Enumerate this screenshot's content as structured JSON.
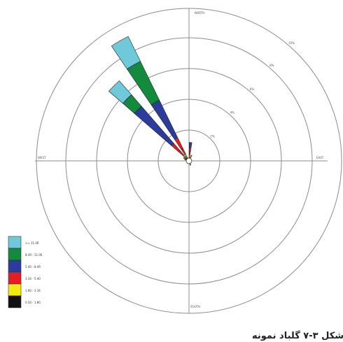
{
  "chart_data": {
    "type": "polar-bar",
    "title": "",
    "rings": [
      "2%",
      "4%",
      "6%",
      "8%",
      "10%"
    ],
    "directions": {
      "north": "NORTH",
      "south": "SOUTH",
      "east": "EAST",
      "west": "WEST"
    },
    "legend": [
      {
        "label": ">= 11.06",
        "color": "#6ec9d8"
      },
      {
        "label": "8.49 - 11.06",
        "color": "#138a3c"
      },
      {
        "label": "5.40 - 8.49",
        "color": "#2b3c9c"
      },
      {
        "label": "3.34 - 5.40",
        "color": "#e51e25"
      },
      {
        "label": "1.80 - 3.34",
        "color": "#f4ea12"
      },
      {
        "label": "0.50 - 1.80",
        "color": "#111111"
      }
    ],
    "series": [
      {
        "direction_deg": 330,
        "segments": [
          0.2,
          0.3,
          0.4,
          0.8,
          2.7,
          2.8,
          1.8
        ]
      },
      {
        "direction_deg": 315,
        "segments": [
          0.2,
          0.3,
          0.4,
          0.6,
          3.2,
          1.0,
          1.2
        ]
      },
      {
        "direction_deg": 5,
        "segments": [
          0.2,
          0.2,
          0.2,
          0.3,
          0.3,
          0,
          0
        ]
      },
      {
        "direction_deg": 25,
        "segments": [
          0.2,
          0.2,
          0,
          0,
          0,
          0,
          0
        ]
      },
      {
        "direction_deg": 300,
        "segments": [
          0.2,
          0.2,
          0,
          0,
          0,
          0,
          0
        ]
      },
      {
        "direction_deg": 290,
        "segments": [
          0.2,
          0.1,
          0,
          0,
          0,
          0,
          0
        ]
      },
      {
        "direction_deg": 160,
        "segments": [
          0.2,
          0.1,
          0,
          0,
          0,
          0,
          0
        ]
      }
    ],
    "segment_colors": [
      "#111111",
      "#f4ea12",
      "#e51e25",
      "#e51e25",
      "#2b3c9c",
      "#138a3c",
      "#6ec9d8"
    ]
  },
  "caption": "شکل ۳-۷ گلباد نمونه"
}
